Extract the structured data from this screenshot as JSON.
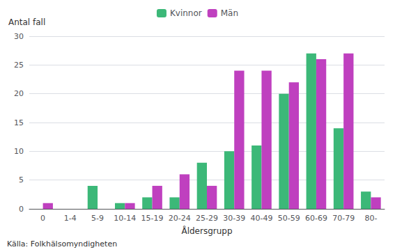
{
  "chart_data": {
    "type": "bar",
    "ylabel": "Antal fall",
    "xlabel": "Åldersgrupp",
    "annotations": [
      "Källa: Folkhälsomyndigheten"
    ],
    "categories": [
      "0",
      "1-4",
      "5-9",
      "10-14",
      "15-19",
      "20-24",
      "25-29",
      "30-39",
      "40-49",
      "50-59",
      "60-69",
      "70-79",
      "80-"
    ],
    "series": [
      {
        "name": "Kvinnor",
        "color": "#3cb878",
        "values": [
          0,
          0,
          4,
          1,
          2,
          2,
          8,
          10,
          11,
          20,
          27,
          14,
          3
        ]
      },
      {
        "name": "Män",
        "color": "#bf40bf",
        "values": [
          1,
          0,
          0,
          1,
          4,
          6,
          4,
          24,
          24,
          22,
          26,
          27,
          2
        ]
      }
    ],
    "ylim": [
      0,
      30
    ],
    "yticks": [
      0,
      5,
      10,
      15,
      20,
      25,
      30
    ],
    "grid": true,
    "legend": "top"
  }
}
